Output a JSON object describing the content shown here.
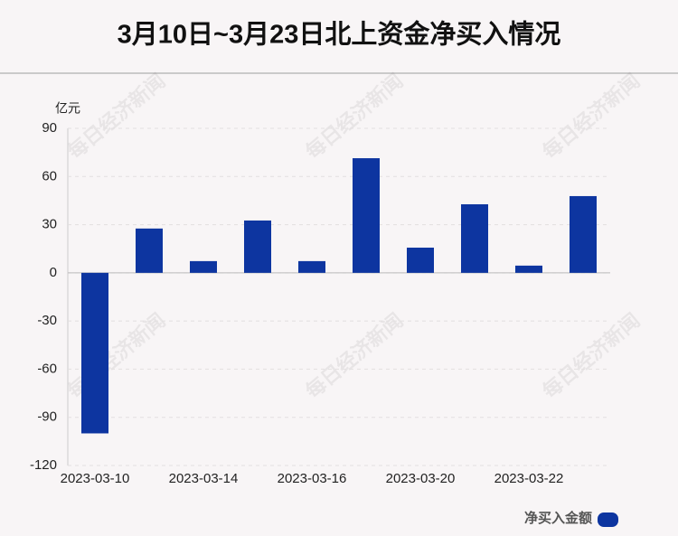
{
  "chart_data": {
    "type": "bar",
    "title": "3月10日~3月23日北上资金净买入情况",
    "y_unit": "亿元",
    "watermark": "每日经济新闻",
    "categories": [
      "2023-03-10",
      null,
      "2023-03-14",
      null,
      "2023-03-16",
      null,
      "2023-03-20",
      null,
      "2023-03-22",
      null
    ],
    "series": [
      {
        "name": "净买入金额",
        "color": "#0d35a0",
        "values": [
          -100,
          27.6,
          7.3,
          32.6,
          7.3,
          71.4,
          15.7,
          42.7,
          4.5,
          47.8
        ]
      }
    ],
    "ylim": [
      -120,
      90
    ],
    "yticks": [
      -120,
      -90,
      -60,
      -30,
      0,
      30,
      60,
      90
    ],
    "grid": true
  }
}
